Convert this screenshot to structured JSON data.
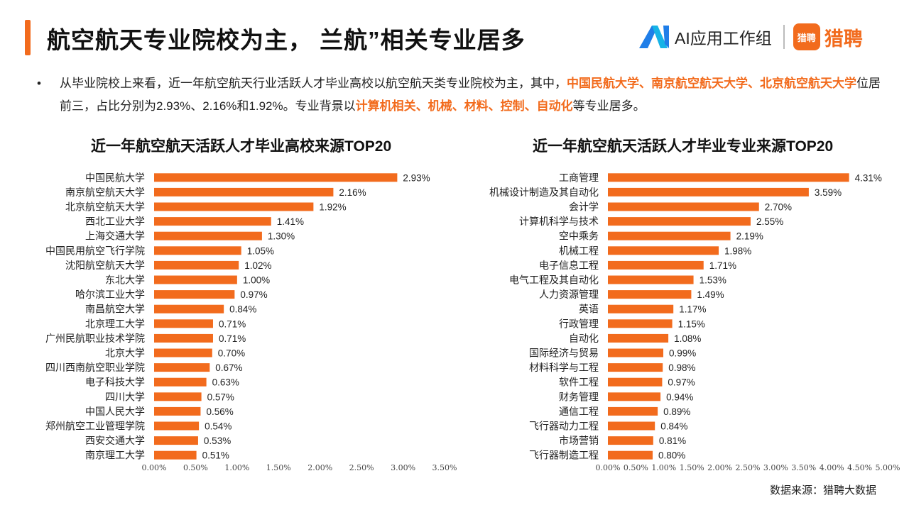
{
  "header": {
    "title": "航空航天专业院校为主，  兰航”相关专业居多",
    "brand_ai": "AI应用工作组",
    "brand_liepin": "猎聘",
    "brand_liepin_badge": "猎聘",
    "ai_logo_icon": "ai-logo-icon",
    "accent_color": "#f26b1d"
  },
  "summary": {
    "bullet": "•",
    "parts": [
      {
        "text": "从毕业院校上来看，近一年航空航天行业活跃人才毕业高校以航空航天类专业院校为主，其中，",
        "highlight": false
      },
      {
        "text": "中国民航大学、南京航空航天大学、北京航空航天大学",
        "highlight": true
      },
      {
        "text": "位居前三，占比分别为2.93%、2.16%和1.92%。专业背景以",
        "highlight": false
      },
      {
        "text": "计算机相关、机械、材料、控制、自动化",
        "highlight": true
      },
      {
        "text": "等专业居多。",
        "highlight": false
      }
    ]
  },
  "chart_data": [
    {
      "type": "bar",
      "orientation": "horizontal",
      "title": "近一年航空航天活跃人才毕业高校来源TOP20",
      "categories": [
        "中国民航大学",
        "南京航空航天大学",
        "北京航空航天大学",
        "西北工业大学",
        "上海交通大学",
        "中国民用航空飞行学院",
        "沈阳航空航天大学",
        "东北大学",
        "哈尔滨工业大学",
        "南昌航空大学",
        "北京理工大学",
        "广州民航职业技术学院",
        "北京大学",
        "四川西南航空职业学院",
        "电子科技大学",
        "四川大学",
        "中国人民大学",
        "郑州航空工业管理学院",
        "西安交通大学",
        "南京理工大学"
      ],
      "values": [
        2.93,
        2.16,
        1.92,
        1.41,
        1.3,
        1.05,
        1.02,
        1.0,
        0.97,
        0.84,
        0.71,
        0.71,
        0.7,
        0.67,
        0.63,
        0.57,
        0.56,
        0.54,
        0.53,
        0.51
      ],
      "value_labels": [
        "2.93%",
        "2.16%",
        "1.92%",
        "1.41%",
        "1.30%",
        "1.05%",
        "1.02%",
        "1.00%",
        "0.97%",
        "0.84%",
        "0.71%",
        "0.71%",
        "0.70%",
        "0.67%",
        "0.63%",
        "0.57%",
        "0.56%",
        "0.54%",
        "0.53%",
        "0.51%"
      ],
      "xticks": [
        "0.00%",
        "0.50%",
        "1.00%",
        "1.50%",
        "2.00%",
        "2.50%",
        "3.00%",
        "3.50%"
      ],
      "xlim": [
        0,
        3.5
      ],
      "bar_color": "#f26b1d",
      "grid": false
    },
    {
      "type": "bar",
      "orientation": "horizontal",
      "title": "近一年航空航天活跃人才毕业专业来源TOP20",
      "categories": [
        "工商管理",
        "机械设计制造及其自动化",
        "会计学",
        "计算机科学与技术",
        "空中乘务",
        "机械工程",
        "电子信息工程",
        "电气工程及其自动化",
        "人力资源管理",
        "英语",
        "行政管理",
        "自动化",
        "国际经济与贸易",
        "材料科学与工程",
        "软件工程",
        "财务管理",
        "通信工程",
        "飞行器动力工程",
        "市场营销",
        "飞行器制造工程"
      ],
      "values": [
        4.31,
        3.59,
        2.7,
        2.55,
        2.19,
        1.98,
        1.71,
        1.53,
        1.49,
        1.17,
        1.15,
        1.08,
        0.99,
        0.98,
        0.97,
        0.94,
        0.89,
        0.84,
        0.81,
        0.8
      ],
      "value_labels": [
        "4.31%",
        "3.59%",
        "2.70%",
        "2.55%",
        "2.19%",
        "1.98%",
        "1.71%",
        "1.53%",
        "1.49%",
        "1.17%",
        "1.15%",
        "1.08%",
        "0.99%",
        "0.98%",
        "0.97%",
        "0.94%",
        "0.89%",
        "0.84%",
        "0.81%",
        "0.80%"
      ],
      "xticks": [
        "0.00%",
        "0.50%",
        "1.00%",
        "1.50%",
        "2.00%",
        "2.50%",
        "3.00%",
        "3.50%",
        "4.00%",
        "4.50%",
        "5.00%"
      ],
      "xlim": [
        0,
        5.0
      ],
      "bar_color": "#f26b1d",
      "grid": false
    }
  ],
  "footer": {
    "source": "数据来源：猎聘大数据"
  }
}
